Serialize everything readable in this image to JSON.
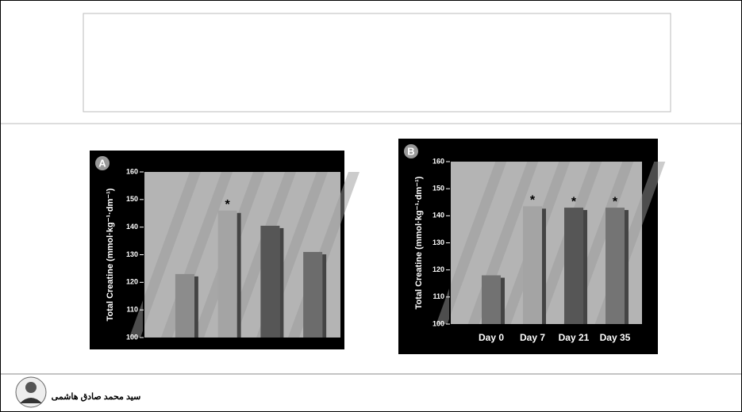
{
  "chart_data": [
    {
      "type": "bar",
      "panel_label": "A",
      "y_label": "Total Creatine (mmol·kg⁻¹·dm⁻¹)",
      "categories": [
        null,
        null,
        null,
        null
      ],
      "values": [
        123,
        146,
        140.5,
        131
      ],
      "colors": [
        "#8c8c8c",
        "#a4a4a4",
        "#565656",
        "#6c6c6c"
      ],
      "significance": [
        null,
        "*",
        null,
        null
      ],
      "ylim": [
        100,
        160
      ],
      "yticks": [
        100,
        110,
        120,
        130,
        140,
        150,
        160
      ]
    },
    {
      "type": "bar",
      "panel_label": "B",
      "y_label": "Total Creatine (mmol·kg⁻¹·dm⁻¹)",
      "categories": [
        "Day 0",
        "Day 7",
        "Day 21",
        "Day 35"
      ],
      "values": [
        118,
        143.5,
        143,
        143
      ],
      "colors": [
        "#727272",
        "#a4a4a4",
        "#565656",
        "#747474"
      ],
      "significance": [
        null,
        "*",
        "*",
        "*"
      ],
      "ylim": [
        100,
        160
      ],
      "yticks": [
        100,
        110,
        120,
        130,
        140,
        150,
        160
      ]
    }
  ],
  "footer": {
    "author": "سید محمد صادق هاشمی"
  }
}
